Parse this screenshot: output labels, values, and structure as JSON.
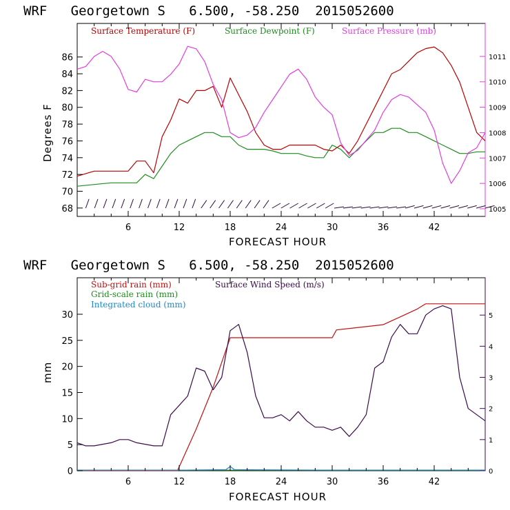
{
  "colors": {
    "temp": "#b80000",
    "dew": "#1e8c1e",
    "pres": "#e03ce0",
    "subgrid": "#c01010",
    "grid": "#1e8c1e",
    "cloud": "#1e88cc",
    "wind": "#3a0a4a"
  },
  "chart_data": [
    {
      "type": "line",
      "title": "WRF   Georgetown S   6.500, -58.250  2015052600",
      "xlabel": "FORECAST HOUR",
      "ylabel": "Degrees F",
      "xlim": [
        0,
        48
      ],
      "ylim": [
        67,
        90
      ],
      "y2lim": [
        1004.7,
        1012.3
      ],
      "xticks": [
        "6",
        "12",
        "18",
        "24",
        "30",
        "36",
        "42"
      ],
      "yticks": [
        "68",
        "70",
        "72",
        "74",
        "76",
        "78",
        "80",
        "82",
        "84",
        "86"
      ],
      "y2ticks": [
        "1005",
        "1006",
        "1007",
        "1008",
        "1009",
        "1010",
        "1011"
      ],
      "legend": [
        "Surface Temperature (F)",
        "Surface Dewpoint (F)",
        "Surface Pressure (mb)"
      ],
      "series": [
        {
          "name": "Surface Temperature (F)",
          "axis": "left",
          "x": [
            0,
            2,
            4,
            6,
            7,
            8,
            9,
            10,
            11,
            12,
            13,
            14,
            15,
            16,
            17,
            18,
            19,
            20,
            21,
            22,
            23,
            24,
            25,
            26,
            27,
            28,
            29,
            30,
            31,
            32,
            33,
            34,
            35,
            36,
            37,
            38,
            39,
            40,
            41,
            42,
            43,
            44,
            45,
            46,
            47,
            48
          ],
          "y": [
            71.8,
            72.4,
            72.4,
            72.4,
            73.6,
            73.6,
            72.2,
            76.5,
            78.5,
            81.0,
            80.5,
            82.0,
            82.0,
            82.5,
            80.0,
            83.5,
            81.5,
            79.5,
            77.0,
            75.5,
            75.0,
            75.0,
            75.5,
            75.5,
            75.5,
            75.5,
            75.0,
            74.8,
            75.5,
            74.5,
            76.0,
            78.0,
            80.0,
            82.0,
            84.0,
            84.5,
            85.5,
            86.5,
            87.0,
            87.2,
            86.5,
            85.0,
            83.0,
            80.0,
            77.0,
            76.0
          ]
        },
        {
          "name": "Surface Dewpoint (F)",
          "axis": "left",
          "x": [
            0,
            2,
            4,
            6,
            7,
            8,
            9,
            10,
            11,
            12,
            13,
            14,
            15,
            16,
            17,
            18,
            19,
            20,
            21,
            22,
            23,
            24,
            25,
            26,
            27,
            28,
            29,
            30,
            31,
            32,
            33,
            34,
            35,
            36,
            37,
            38,
            39,
            40,
            41,
            42,
            43,
            44,
            45,
            46,
            47,
            48
          ],
          "y": [
            70.6,
            70.8,
            71.0,
            71.0,
            71.0,
            72.0,
            71.5,
            73.0,
            74.5,
            75.5,
            76.0,
            76.5,
            77.0,
            77.0,
            76.5,
            76.5,
            75.5,
            75.0,
            75.0,
            75.0,
            74.8,
            74.5,
            74.5,
            74.5,
            74.2,
            74.0,
            74.0,
            75.5,
            75.0,
            74.0,
            75.0,
            76.0,
            77.0,
            77.0,
            77.5,
            77.5,
            77.0,
            77.0,
            76.5,
            76.0,
            75.5,
            75.0,
            74.5,
            74.5,
            74.7,
            74.7
          ]
        },
        {
          "name": "Surface Pressure (mb)",
          "axis": "right",
          "x": [
            0,
            1,
            2,
            3,
            4,
            5,
            6,
            7,
            8,
            9,
            10,
            11,
            12,
            13,
            14,
            15,
            16,
            17,
            18,
            19,
            20,
            21,
            22,
            23,
            24,
            25,
            26,
            27,
            28,
            29,
            30,
            31,
            32,
            33,
            34,
            35,
            36,
            37,
            38,
            39,
            40,
            41,
            42,
            43,
            44,
            45,
            46,
            47,
            48
          ],
          "y": [
            1010.5,
            1010.6,
            1011.0,
            1011.2,
            1011.0,
            1010.5,
            1009.7,
            1009.6,
            1010.1,
            1010.0,
            1010.0,
            1010.3,
            1010.7,
            1011.4,
            1011.3,
            1010.8,
            1009.9,
            1009.3,
            1008.0,
            1007.8,
            1007.9,
            1008.2,
            1008.8,
            1009.3,
            1009.8,
            1010.3,
            1010.5,
            1010.1,
            1009.4,
            1009.0,
            1008.7,
            1007.6,
            1007.1,
            1007.3,
            1007.7,
            1008.1,
            1008.8,
            1009.3,
            1009.5,
            1009.4,
            1009.1,
            1008.8,
            1008.1,
            1006.8,
            1006.0,
            1006.5,
            1007.2,
            1007.4,
            1008.0
          ]
        }
      ],
      "wind_barbs": {
        "x_start": 1,
        "x_end": 48,
        "count": 46
      }
    },
    {
      "type": "line",
      "title": "WRF   Georgetown S   6.500, -58.250  2015052600",
      "xlabel": "FORECAST HOUR",
      "ylabel": "mm",
      "xlim": [
        0,
        48
      ],
      "ylim": [
        0,
        37
      ],
      "y2lim": [
        0,
        6.2
      ],
      "xticks": [
        "6",
        "12",
        "18",
        "24",
        "30",
        "36",
        "42"
      ],
      "yticks": [
        "0",
        "5",
        "10",
        "15",
        "20",
        "25",
        "30"
      ],
      "y2ticks": [
        "0",
        "1",
        "2",
        "3",
        "4",
        "5"
      ],
      "legend": [
        "Sub-grid rain (mm)",
        "Grid-scale rain (mm)",
        "Integrated cloud (mm)",
        "Surface Wind Speed (m/s)"
      ],
      "series": [
        {
          "name": "Sub-grid rain (mm)",
          "axis": "left",
          "x": [
            0,
            11.8,
            14,
            16,
            18,
            18.5,
            30,
            30.5,
            36,
            38,
            40,
            41,
            48
          ],
          "y": [
            0,
            0,
            8,
            16,
            25.5,
            25.5,
            25.5,
            27,
            28,
            29.5,
            31,
            32,
            32
          ]
        },
        {
          "name": "Grid-scale rain (mm)",
          "axis": "left",
          "x": [
            0,
            48
          ],
          "y": [
            0.1,
            0.1
          ]
        },
        {
          "name": "Integrated cloud (mm)",
          "axis": "left",
          "x": [
            0,
            12,
            17.5,
            18,
            18.5,
            30,
            36,
            48
          ],
          "y": [
            0.1,
            0.1,
            0.2,
            0.8,
            0.2,
            0.1,
            0.1,
            0.1
          ]
        },
        {
          "name": "Surface Wind Speed (m/s)",
          "axis": "right",
          "x": [
            0,
            1,
            2,
            3,
            4,
            5,
            6,
            7,
            8,
            9,
            10,
            11,
            12,
            13,
            14,
            15,
            16,
            17,
            18,
            19,
            20,
            21,
            22,
            23,
            24,
            25,
            26,
            27,
            28,
            29,
            30,
            31,
            32,
            33,
            34,
            35,
            36,
            37,
            38,
            39,
            40,
            41,
            42,
            43,
            44,
            45,
            46,
            47,
            48
          ],
          "y": [
            0.9,
            0.8,
            0.8,
            0.85,
            0.9,
            1.0,
            1.0,
            0.9,
            0.85,
            0.8,
            0.8,
            1.8,
            2.1,
            2.4,
            3.3,
            3.2,
            2.6,
            3.0,
            4.5,
            4.7,
            3.8,
            2.4,
            1.7,
            1.7,
            1.8,
            1.6,
            1.9,
            1.6,
            1.4,
            1.4,
            1.3,
            1.4,
            1.1,
            1.4,
            1.8,
            3.3,
            3.5,
            4.3,
            4.7,
            4.4,
            4.4,
            5.0,
            5.2,
            5.3,
            5.2,
            3.0,
            2.0,
            1.8,
            1.6
          ]
        }
      ]
    }
  ]
}
